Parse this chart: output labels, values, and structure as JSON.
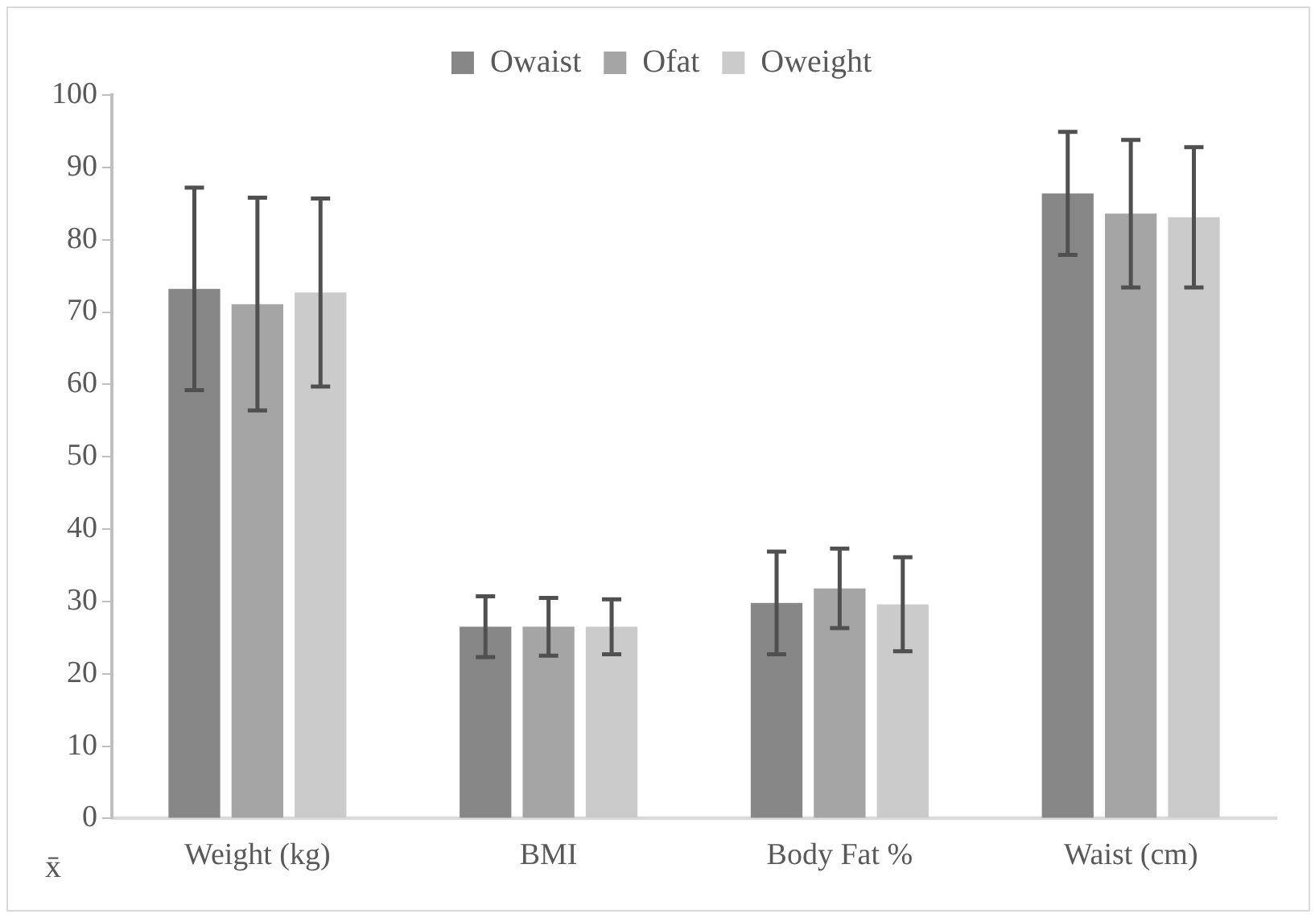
{
  "chart_data": {
    "type": "bar",
    "categories": [
      "Weight (kg)",
      "BMI",
      "Body Fat %",
      "Waist (cm)"
    ],
    "series": [
      {
        "name": "Owaist",
        "color": "#878787",
        "values": [
          73.2,
          26.5,
          29.8,
          86.4
        ],
        "errors": [
          14,
          4.2,
          7.1,
          8.5
        ]
      },
      {
        "name": "Ofat",
        "color": "#a5a5a5",
        "values": [
          71.1,
          26.5,
          31.8,
          83.6
        ],
        "errors": [
          14.7,
          4,
          5.5,
          10.2
        ]
      },
      {
        "name": "Oweight",
        "color": "#cbcbcb",
        "values": [
          72.7,
          26.5,
          29.6,
          83.1
        ],
        "errors": [
          13,
          3.8,
          6.5,
          9.7
        ]
      }
    ],
    "ylim": [
      0,
      100
    ],
    "yticks": [
      0,
      10,
      20,
      30,
      40,
      50,
      60,
      70,
      80,
      90,
      100
    ],
    "grid": false,
    "legend": "top",
    "annotations": [
      "x̄"
    ]
  }
}
